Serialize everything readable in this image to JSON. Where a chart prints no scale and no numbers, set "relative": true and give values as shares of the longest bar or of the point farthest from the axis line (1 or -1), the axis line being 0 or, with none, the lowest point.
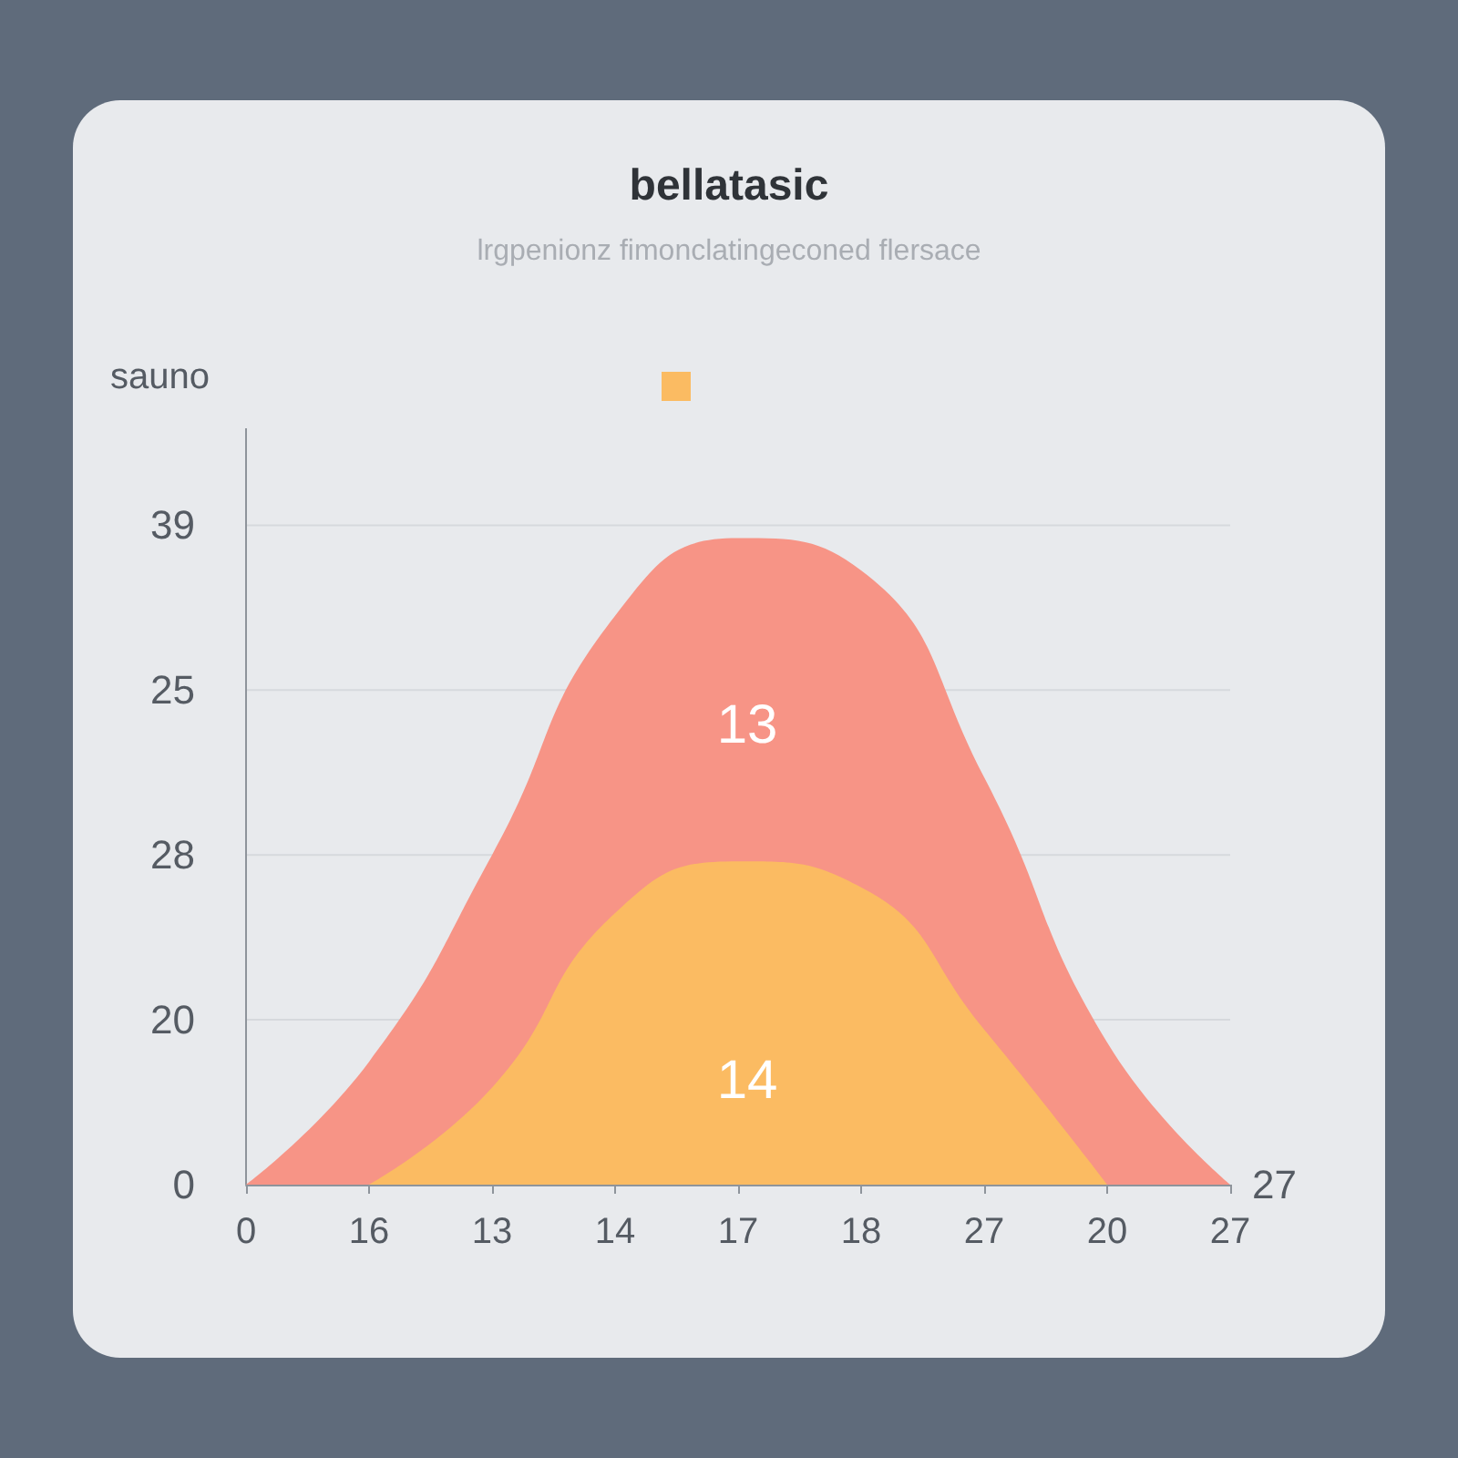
{
  "chart_data": {
    "type": "area",
    "title": "bellatasic",
    "subtitle": "lrgpenionz fimonclatingeconed flersace",
    "ylabel": "sauno",
    "xlabel": "27",
    "categories": [
      "0",
      "16",
      "13",
      "14",
      "17",
      "18",
      "27",
      "20",
      "27"
    ],
    "relative": true,
    "series": [
      {
        "color": "#f79486",
        "values": [
          0,
          0.19,
          0.51,
          0.88,
          1,
          0.95,
          0.63,
          0.22,
          0
        ]
      },
      {
        "color": "#fbbb62",
        "values": [
          null,
          0,
          0.15,
          0.42,
          0.5,
          0.46,
          0.24,
          0,
          null
        ]
      }
    ],
    "grid": "y",
    "annotations": [
      "13",
      "14",
      "0",
      "20",
      "28",
      "25",
      "39"
    ]
  }
}
